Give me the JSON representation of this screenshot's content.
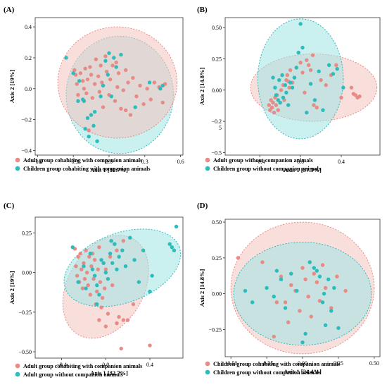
{
  "colors": {
    "adult": "#e88a85",
    "children": "#2bbcbc",
    "adult_fill": "#f4c4c0",
    "children_fill": "#9ee3e3",
    "overlap_fill": "#b3aaa4"
  },
  "chart_data": [
    {
      "type": "scatter",
      "panel_label": "(A)",
      "xlabel": "Axis 1 [39.7%]",
      "ylabel": "Axis 2 [19%]",
      "xlim": [
        -0.62,
        0.62
      ],
      "ylim": [
        -0.43,
        0.46
      ],
      "xticks": [
        -0.6,
        -0.3,
        0.0,
        0.3,
        0.6
      ],
      "xtick_labels": [
        "−0.6",
        "−0.3",
        "0.0",
        "0.3",
        "0.6"
      ],
      "yticks": [
        -0.4,
        -0.2,
        0.0,
        0.2,
        0.4
      ],
      "ytick_labels": [
        "−0.4",
        "−0.2",
        "0.0",
        "0.2",
        "0.4"
      ],
      "series": [
        {
          "name": "Adult group cohabiting with companion animals",
          "x": [
            -0.29,
            -0.28,
            -0.27,
            -0.26,
            -0.24,
            -0.22,
            -0.21,
            -0.2,
            -0.19,
            -0.18,
            -0.16,
            -0.15,
            -0.14,
            -0.12,
            -0.11,
            -0.09,
            -0.08,
            -0.07,
            -0.06,
            -0.05,
            -0.03,
            -0.02,
            0.0,
            0.01,
            0.03,
            0.05,
            0.07,
            0.08,
            0.1,
            0.12,
            0.14,
            0.16,
            0.18,
            0.2,
            0.23,
            0.26,
            0.29,
            0.32,
            0.35,
            0.38,
            0.42,
            0.45,
            0.47,
            0.14,
            -0.17,
            0.06
          ],
          "y": [
            0.12,
            0.09,
            0.03,
            -0.04,
            0.1,
            0.05,
            0.0,
            0.13,
            -0.03,
            0.06,
            0.14,
            0.09,
            -0.06,
            0.03,
            0.19,
            0.08,
            -0.02,
            0.15,
            0.04,
            -0.12,
            0.21,
            0.11,
            -0.04,
            0.06,
            0.15,
            -0.08,
            0.01,
            0.1,
            -0.13,
            -0.01,
            0.12,
            0.04,
            -0.17,
            0.07,
            -0.05,
            0.02,
            -0.1,
            0.0,
            -0.07,
            0.04,
            0.01,
            -0.09,
            0.03,
            -0.14,
            -0.27,
            0.17
          ]
        },
        {
          "name": "Children group cohabiting with companion animals",
          "x": [
            -0.36,
            -0.3,
            -0.26,
            -0.25,
            -0.22,
            -0.21,
            -0.2,
            -0.18,
            -0.17,
            -0.15,
            -0.13,
            -0.12,
            -0.1,
            -0.07,
            -0.05,
            -0.03,
            -0.01,
            0.0,
            0.02,
            0.04,
            0.06,
            0.1,
            0.22,
            0.34,
            0.43,
            0.45
          ],
          "y": [
            0.2,
            0.1,
            -0.08,
            0.05,
            -0.07,
            -0.08,
            -0.26,
            -0.19,
            -0.31,
            -0.17,
            -0.24,
            -0.15,
            -0.34,
            -0.05,
            0.02,
            0.18,
            0.09,
            0.23,
            -0.05,
            0.2,
            0.14,
            0.22,
            -0.12,
            0.04,
            0.0,
            0.02
          ]
        }
      ]
    },
    {
      "type": "scatter",
      "panel_label": "(B)",
      "xlabel": "Axis 1 [37.3%]",
      "ylabel": "Axis 2 [14.8%]",
      "xlim": [
        -0.74,
        0.78
      ],
      "ylim": [
        -0.52,
        0.58
      ],
      "xticks": [
        -0.4,
        0.0,
        0.4
      ],
      "xtick_labels": [
        "−0.4",
        "0.0",
        "0.4"
      ],
      "yticks": [
        -0.5,
        -0.25,
        0.0,
        0.25,
        0.5
      ],
      "ytick_labels": [
        "−0.5",
        "−0.2\n5",
        "0.00",
        "0.25",
        "0.50"
      ],
      "series": [
        {
          "name": "Adult group without companion animals",
          "x": [
            -0.31,
            -0.3,
            -0.29,
            -0.28,
            -0.27,
            -0.26,
            -0.25,
            -0.24,
            -0.23,
            -0.22,
            -0.2,
            -0.19,
            -0.17,
            -0.16,
            -0.14,
            -0.13,
            -0.11,
            -0.1,
            -0.08,
            -0.06,
            -0.04,
            -0.02,
            0.0,
            0.02,
            0.04,
            0.06,
            0.08,
            0.1,
            0.13,
            0.16,
            0.2,
            0.25,
            0.3,
            0.35,
            0.4,
            0.5,
            0.52,
            0.54,
            0.56,
            0.58,
            -0.12,
            0.12
          ],
          "y": [
            -0.12,
            -0.16,
            -0.08,
            -0.14,
            -0.1,
            -0.18,
            -0.06,
            -0.12,
            -0.04,
            -0.16,
            -0.1,
            0.0,
            0.04,
            -0.08,
            0.08,
            0.12,
            0.02,
            0.16,
            0.06,
            0.1,
            0.18,
            0.3,
            0.22,
            0.14,
            -0.02,
            0.24,
            0.2,
            0.16,
            -0.12,
            -0.14,
            0.08,
            0.04,
            0.12,
            0.2,
            -0.06,
            0.02,
            -0.03,
            -0.04,
            -0.06,
            -0.05,
            0.07,
            0.28
          ]
        },
        {
          "name": "Children group without companion animals",
          "x": [
            -0.27,
            -0.25,
            -0.24,
            -0.22,
            -0.21,
            -0.2,
            -0.18,
            -0.17,
            -0.15,
            -0.14,
            -0.12,
            -0.1,
            -0.08,
            -0.06,
            -0.04,
            -0.02,
            0.0,
            0.02,
            0.06,
            0.1,
            0.14,
            0.18,
            0.22,
            0.28,
            0.32,
            0.36,
            0.42
          ],
          "y": [
            0.1,
            0.02,
            -0.04,
            -0.08,
            0.08,
            -0.1,
            0.12,
            -0.06,
            0.04,
            -0.02,
            -0.12,
            0.06,
            0.02,
            0.1,
            0.18,
            0.3,
            0.53,
            0.34,
            -0.18,
            0.05,
            -0.08,
            0.15,
            -0.16,
            0.2,
            0.13,
            0.17,
            0.02
          ]
        }
      ]
    },
    {
      "type": "scatter",
      "panel_label": "(C)",
      "xlabel": "Axis 1 [32.7%]",
      "ylabel": "Axis 2 [19%]",
      "xlim": [
        -0.64,
        0.7
      ],
      "ylim": [
        -0.54,
        0.35
      ],
      "xticks": [
        -0.4,
        0.0,
        0.4
      ],
      "xtick_labels": [
        "−0.4",
        "0.0",
        "0.4"
      ],
      "yticks": [
        -0.5,
        -0.25,
        0.0,
        0.25
      ],
      "ytick_labels": [
        "−0.50",
        "−0.25",
        "0.00",
        "0.25"
      ],
      "series": [
        {
          "name": "Adult group cohabiting with companion animals",
          "x": [
            -0.28,
            -0.27,
            -0.26,
            -0.25,
            -0.24,
            -0.23,
            -0.22,
            -0.21,
            -0.2,
            -0.19,
            -0.18,
            -0.17,
            -0.16,
            -0.15,
            -0.14,
            -0.13,
            -0.12,
            -0.11,
            -0.1,
            -0.09,
            -0.08,
            -0.07,
            -0.06,
            -0.05,
            -0.04,
            -0.03,
            -0.02,
            -0.01,
            0.0,
            0.02,
            0.04,
            0.06,
            0.08,
            0.1,
            0.12,
            0.14,
            0.16,
            0.2,
            0.25,
            0.4,
            0.16,
            0.1,
            -0.06,
            0.0
          ],
          "y": [
            0.15,
            0.04,
            -0.02,
            0.1,
            -0.06,
            0.12,
            0.02,
            -0.1,
            0.06,
            -0.04,
            0.14,
            0.0,
            -0.08,
            0.1,
            -0.14,
            0.04,
            0.12,
            -0.04,
            0.08,
            -0.2,
            -0.12,
            0.02,
            0.16,
            -0.06,
            -0.22,
            -0.16,
            0.06,
            -0.1,
            0.02,
            -0.26,
            0.1,
            -0.08,
            0.18,
            -0.32,
            -0.28,
            -0.48,
            -0.3,
            -0.3,
            -0.2,
            -0.46,
            0.2,
            0.14,
            -0.3,
            -0.34
          ]
        },
        {
          "name": "Adult group without companion animals",
          "x": [
            -0.3,
            -0.25,
            -0.2,
            -0.18,
            -0.14,
            -0.12,
            -0.1,
            -0.08,
            -0.06,
            -0.04,
            -0.02,
            0.0,
            0.02,
            0.04,
            0.06,
            0.08,
            0.1,
            0.12,
            0.15,
            0.18,
            0.22,
            0.26,
            0.3,
            0.34,
            0.4,
            0.42,
            0.58,
            0.6,
            0.62,
            0.64,
            -0.08,
            0.05
          ],
          "y": [
            0.16,
            -0.06,
            0.04,
            -0.1,
            0.12,
            0.02,
            -0.02,
            -0.08,
            -0.14,
            0.08,
            0.06,
            0.0,
            -0.04,
            0.12,
            0.06,
            0.18,
            0.02,
            0.1,
            0.14,
            0.04,
            0.22,
            0.08,
            -0.06,
            0.14,
            -0.12,
            -0.02,
            0.18,
            0.16,
            0.14,
            0.29,
            -0.2,
            0.2
          ]
        }
      ]
    },
    {
      "type": "scatter",
      "panel_label": "(D)",
      "xlabel": "Axis 1 [24.4%]",
      "ylabel": "Axis 2 [14.8%]",
      "xlim": [
        -0.54,
        0.54
      ],
      "ylim": [
        -0.44,
        0.52
      ],
      "xticks": [
        -0.5,
        -0.25,
        0.0,
        0.25,
        0.5
      ],
      "xtick_labels": [
        "−0.50",
        "−0.25",
        "0.00",
        "0.25",
        "0.50"
      ],
      "yticks": [
        -0.25,
        0.0,
        0.25,
        0.5
      ],
      "ytick_labels": [
        "−0.25",
        "0.00",
        "0.25",
        "0.50"
      ],
      "series": [
        {
          "name": "Children group cohabiting with companion animals",
          "x": [
            -0.45,
            -0.28,
            -0.2,
            -0.15,
            -0.12,
            -0.1,
            -0.08,
            -0.05,
            -0.02,
            0.0,
            0.02,
            0.04,
            0.06,
            0.08,
            0.1,
            0.12,
            0.14,
            0.16,
            0.2,
            0.24,
            0.3,
            0.05,
            -0.18
          ],
          "y": [
            0.25,
            0.22,
            -0.3,
            0.12,
            -0.06,
            -0.2,
            0.06,
            0.02,
            -0.12,
            0.18,
            0.1,
            -0.02,
            -0.16,
            0.14,
            0.08,
            -0.05,
            0.2,
            0.04,
            -0.1,
            0.12,
            0.02,
            0.22,
            -0.06
          ]
        },
        {
          "name": "Children group without companion animals",
          "x": [
            -0.4,
            -0.35,
            -0.25,
            -0.2,
            -0.15,
            -0.12,
            -0.08,
            -0.04,
            0.0,
            0.02,
            0.05,
            0.08,
            0.1,
            0.12,
            0.14,
            0.16,
            0.18,
            0.2,
            0.22,
            0.25,
            0.15,
            -0.18
          ],
          "y": [
            0.02,
            -0.06,
            0.04,
            -0.02,
            0.1,
            -0.1,
            0.14,
            0.02,
            -0.34,
            -0.28,
            0.22,
            0.18,
            0.16,
            0.12,
            -0.06,
            -0.22,
            0.1,
            -0.12,
            0.04,
            -0.24,
            0.0,
            0.16
          ]
        }
      ]
    }
  ]
}
